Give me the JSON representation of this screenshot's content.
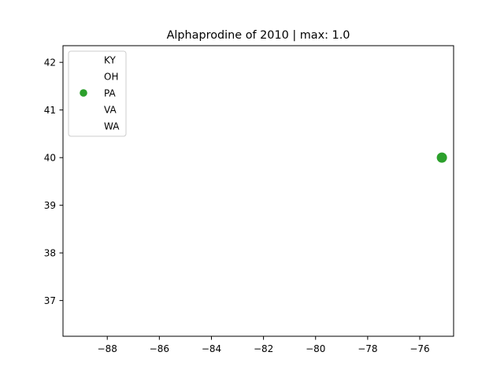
{
  "chart_data": {
    "type": "scatter",
    "title": "Alphaprodine of 2010 | max: 1.0",
    "xlabel": "",
    "ylabel": "",
    "xlim": [
      -89.7,
      -74.7
    ],
    "ylim": [
      36.25,
      42.35
    ],
    "x_ticks": [
      -88,
      -86,
      -84,
      -82,
      -80,
      -78,
      -76
    ],
    "x_tick_labels": [
      "−88",
      "−86",
      "−84",
      "−82",
      "−80",
      "−78",
      "−76"
    ],
    "y_ticks": [
      37,
      38,
      39,
      40,
      41,
      42
    ],
    "y_tick_labels": [
      "37",
      "38",
      "39",
      "40",
      "41",
      "42"
    ],
    "grid": false,
    "legend_position": "top-left",
    "series": [
      {
        "name": "KY",
        "color": "#ffffff",
        "points": []
      },
      {
        "name": "OH",
        "color": "#ffffff",
        "points": []
      },
      {
        "name": "PA",
        "color": "#2ca02c",
        "points": [
          {
            "x": -75.15,
            "y": 40.0
          }
        ]
      },
      {
        "name": "VA",
        "color": "#ffffff",
        "points": []
      },
      {
        "name": "WA",
        "color": "#ffffff",
        "points": []
      }
    ]
  }
}
